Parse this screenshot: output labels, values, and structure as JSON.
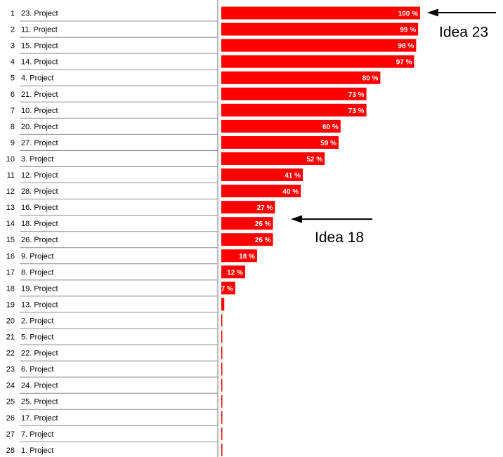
{
  "chart_data": {
    "type": "bar",
    "orientation": "horizontal",
    "categories": [
      "23. Project",
      "11. Project",
      "15. Project",
      "14. Project",
      "4. Project",
      "21. Project",
      "10. Project",
      "20. Project",
      "27. Project",
      "3. Project",
      "12. Project",
      "28. Project",
      "16. Project",
      "18. Project",
      "26. Project",
      "9. Project",
      "8. Project",
      "19. Project",
      "13. Project",
      "2. Project",
      "5. Project",
      "22. Project",
      "6. Project",
      "24. Project",
      "25. Project",
      "17. Project",
      "7. Project",
      "1. Project"
    ],
    "ranks": [
      "1",
      "2",
      "3",
      "4",
      "5",
      "6",
      "7",
      "8",
      "9",
      "10",
      "11",
      "12",
      "13",
      "14",
      "15",
      "16",
      "17",
      "18",
      "19",
      "20",
      "21",
      "22",
      "23",
      "24",
      "25",
      "26",
      "27",
      "28"
    ],
    "values": [
      100,
      99,
      98,
      97,
      80,
      73,
      73,
      60,
      59,
      52,
      41,
      40,
      27,
      26,
      26,
      18,
      12,
      7,
      1.5,
      0.3,
      0.3,
      0.3,
      0.3,
      0.3,
      0.3,
      0.3,
      0.3,
      0.3
    ],
    "value_labels": [
      "100 %",
      "99 %",
      "98 %",
      "97 %",
      "80 %",
      "73 %",
      "73 %",
      "60 %",
      "59 %",
      "52 %",
      "41 %",
      "40 %",
      "27 %",
      "26 %",
      "26 %",
      "18 %",
      "12 %",
      "7 %",
      "",
      "",
      "",
      "",
      "",
      "",
      "",
      "",
      "",
      ""
    ],
    "xlim": [
      0,
      100
    ],
    "bar_color": "#ff0000",
    "grid": false,
    "annotations": [
      {
        "text": "Idea 23",
        "points_to": "23. Project"
      },
      {
        "text": "Idea 18",
        "points_to": "18. Project"
      }
    ]
  }
}
